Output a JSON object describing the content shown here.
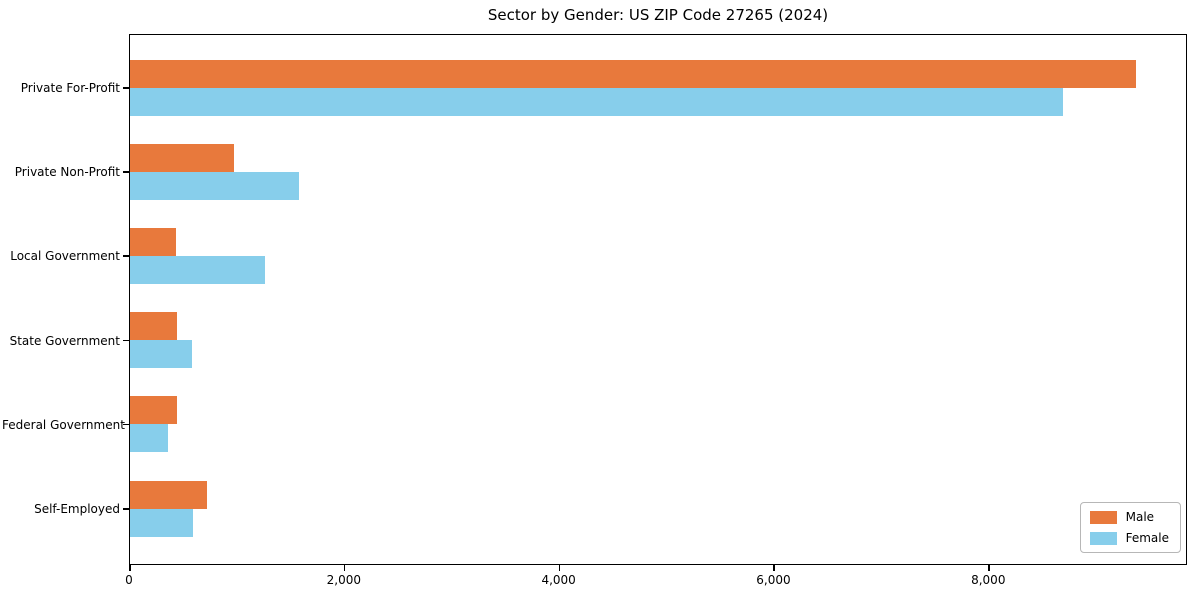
{
  "chart_data": {
    "type": "bar",
    "orientation": "horizontal",
    "title": "Sector by Gender: US ZIP Code 27265 (2024)",
    "categories": [
      "Private For-Profit",
      "Private Non-Profit",
      "Local Government",
      "State Government",
      "Federal Government",
      "Self-Employed"
    ],
    "series": [
      {
        "name": "Male",
        "color": "#E8793C",
        "values": [
          9370,
          970,
          430,
          440,
          440,
          720
        ]
      },
      {
        "name": "Female",
        "color": "#87CEEB",
        "values": [
          8690,
          1570,
          1260,
          580,
          350,
          590
        ]
      }
    ],
    "xlabel": "",
    "ylabel": "",
    "xlim": [
      0,
      9850
    ],
    "xticks": [
      0,
      2000,
      4000,
      6000,
      8000
    ],
    "xtick_labels": [
      "0",
      "2,000",
      "4,000",
      "6,000",
      "8,000"
    ],
    "grid": false,
    "legend_position": "lower right"
  }
}
